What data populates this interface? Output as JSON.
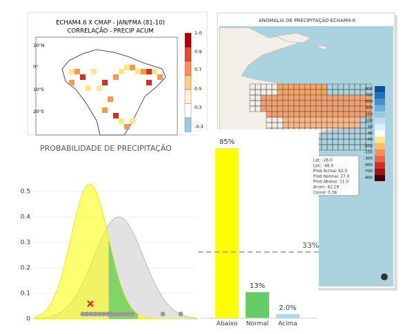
{
  "correlation_map": {
    "title_lines": [
      "ECHAM4.6 X CMAP - JAN/FMA (81-10)",
      "CORRELAÇÃO - PRECIP ACUM"
    ],
    "lat_labels": [
      "10°N",
      "0°",
      "10°S",
      "20°S"
    ],
    "colorbar_labels": [
      "1.0",
      "0.9",
      "0.7",
      "0.5",
      "0.3",
      "-0.3"
    ]
  },
  "anomaly_map": {
    "title": "ANOMALIA DE PRECIPITAÇÃO ECHAM4.6",
    "colorbar_labels": [
      "800",
      "700",
      "500",
      "300",
      "150",
      "100",
      "50",
      "-30",
      "-50",
      "-100",
      "-150",
      "-300",
      "-500",
      "-700",
      "-800"
    ],
    "tooltip": [
      "Lat: -26.0",
      "Lon: -48.0",
      "Prob Acima: 62.0",
      "Prob Normal: 27.0",
      "Prob Abaixo: 11.0",
      "Anom: 62.19",
      "Correl: 0.38"
    ]
  },
  "density_chart": {
    "title": "PROBABILIDADE DE PRECIPITAÇÃO",
    "ylim": [
      0,
      0.55
    ],
    "yticks": [
      0,
      0.1,
      0.2,
      0.3,
      0.4,
      0.5
    ]
  },
  "chart_data": {
    "type": "bar",
    "categories": [
      "Abaixo",
      "Normal",
      "Acima"
    ],
    "values": [
      85,
      13,
      2.0
    ],
    "value_labels": [
      "85%",
      "13%",
      "2.0%"
    ],
    "colors": [
      "#ffff00",
      "#66cc66",
      "#a6d8f0"
    ],
    "ylim": [
      0,
      90
    ],
    "reference": {
      "value": 33,
      "label": "33%"
    }
  }
}
